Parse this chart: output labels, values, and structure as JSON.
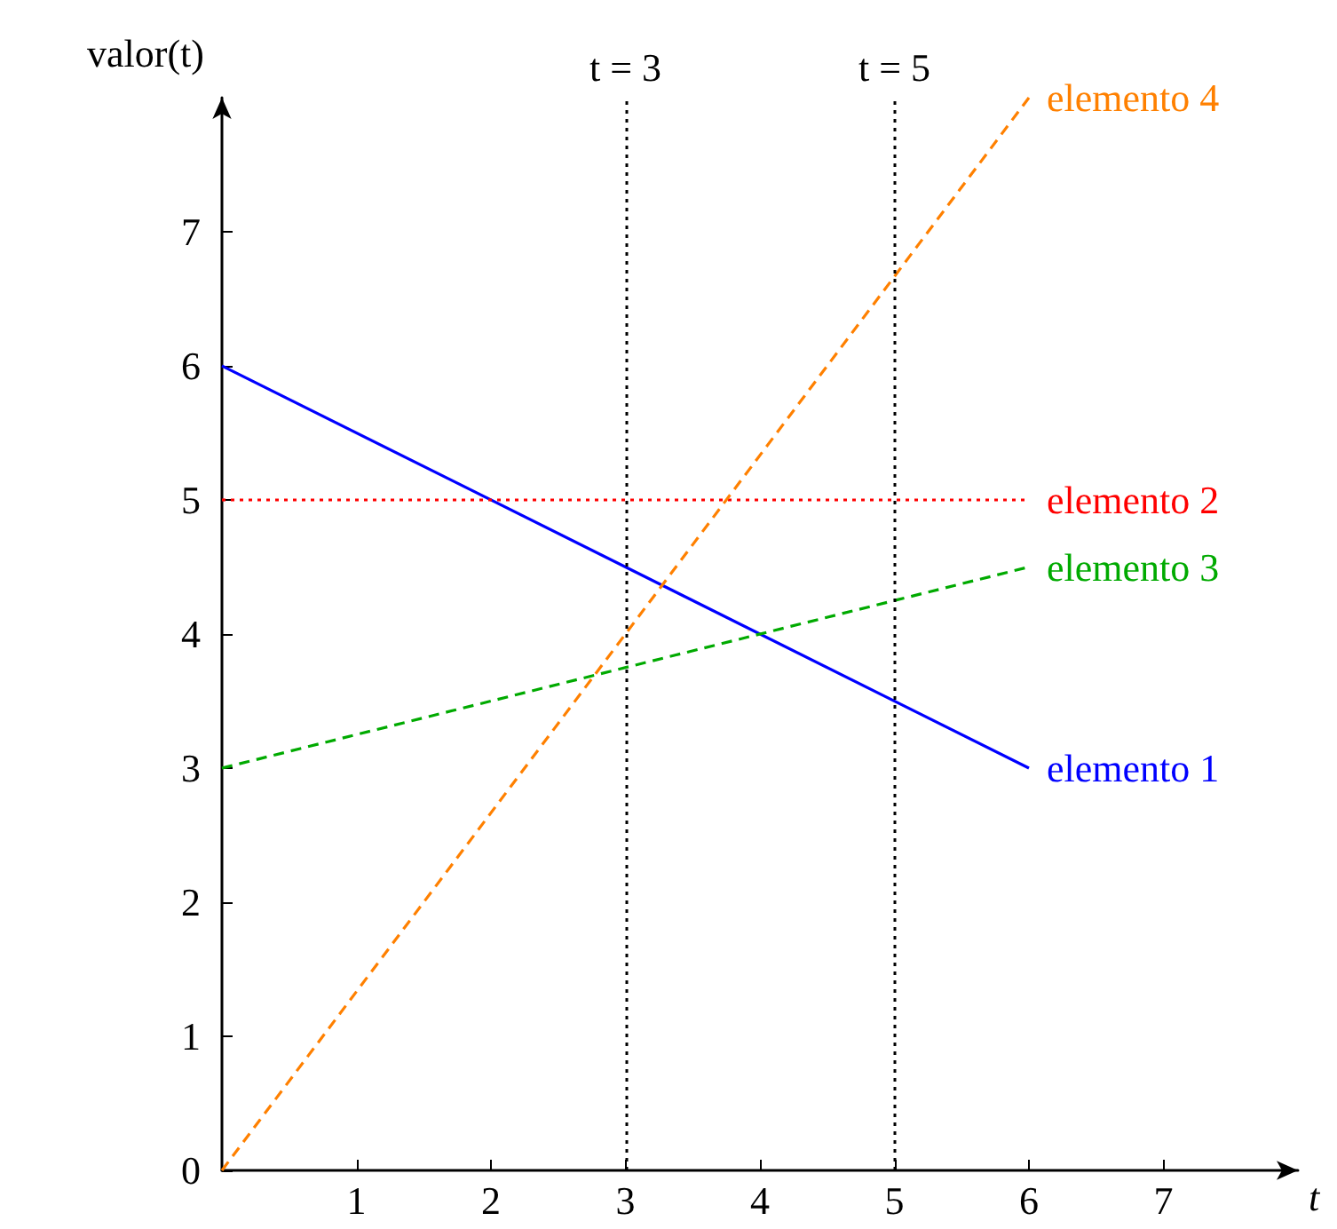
{
  "chart_data": {
    "type": "line",
    "xlabel": "t",
    "ylabel": "valor(t)",
    "x": [
      0,
      6
    ],
    "series": [
      {
        "name": "elemento 1",
        "color": "#0000ff",
        "values": [
          6,
          3
        ],
        "line_style": "solid"
      },
      {
        "name": "elemento 2",
        "color": "#ff0000",
        "values": [
          5,
          5
        ],
        "line_style": "dotted"
      },
      {
        "name": "elemento 3",
        "color": "#00aa00",
        "values": [
          3,
          4.5
        ],
        "line_style": "dashed"
      },
      {
        "name": "elemento 4",
        "color": "#ff8000",
        "values": [
          0,
          8
        ],
        "line_style": "dashed"
      }
    ],
    "xlim": [
      0,
      8
    ],
    "ylim": [
      0,
      8
    ],
    "xticks": [
      1,
      2,
      3,
      4,
      5,
      6,
      7
    ],
    "yticks": [
      0,
      1,
      2,
      3,
      4,
      5,
      6,
      7
    ],
    "ref_lines": [
      {
        "axis": "x",
        "value": 3,
        "label": "t = 3",
        "color": "#000000",
        "line_style": "dotted"
      },
      {
        "axis": "x",
        "value": 5,
        "label": "t = 5",
        "color": "#000000",
        "line_style": "dotted"
      }
    ],
    "grid": false,
    "legend": false,
    "marker": "none"
  }
}
